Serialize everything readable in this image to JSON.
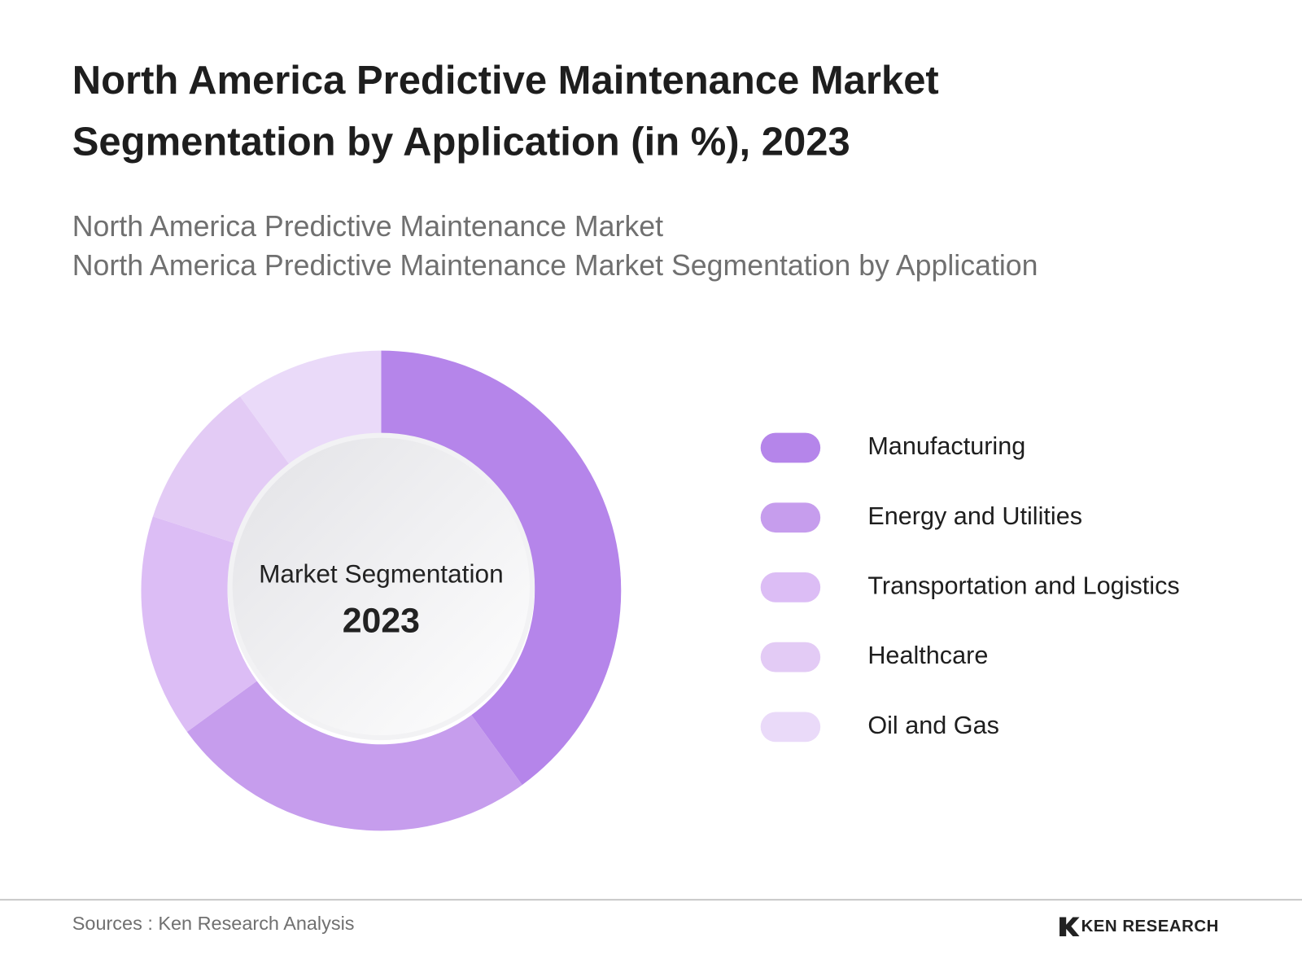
{
  "chart_data": {
    "type": "donut",
    "title": [
      "North America Predictive Maintenance Market",
      "Segmentation by Application (in %), 2023"
    ],
    "subtitle": [
      "North America Predictive Maintenance Market",
      "North America Predictive Maintenance Market Segmentation by Application"
    ],
    "center_label": "Market Segmentation",
    "center_year": "2023",
    "categories": [
      "Manufacturing",
      "Energy and Utilities",
      "Transportation and Logistics",
      "Healthcare",
      "Oil and Gas"
    ],
    "values": [
      40,
      25,
      15,
      10,
      10
    ],
    "colors": [
      "#b585ea",
      "#c69ded",
      "#dcbdf5",
      "#e3cbf5",
      "#eadaf9"
    ],
    "legend": "right"
  },
  "footer": {
    "source": "Sources : Ken Research Analysis",
    "logo": "KEN RESEARCH"
  }
}
